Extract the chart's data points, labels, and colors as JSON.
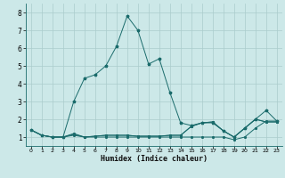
{
  "xlabel": "Humidex (Indice chaleur)",
  "bg_color": "#cce8e8",
  "grid_color": "#aacccc",
  "line_color": "#1a6b6b",
  "xlim": [
    -0.5,
    23.5
  ],
  "ylim": [
    0.5,
    8.5
  ],
  "xticks": [
    0,
    1,
    2,
    3,
    4,
    5,
    6,
    7,
    8,
    9,
    10,
    11,
    12,
    13,
    14,
    15,
    16,
    17,
    18,
    19,
    20,
    21,
    22,
    23
  ],
  "yticks": [
    1,
    2,
    3,
    4,
    5,
    6,
    7,
    8
  ],
  "lines": [
    {
      "x": [
        0,
        1,
        2,
        3,
        4,
        5,
        6,
        7,
        8,
        9,
        10,
        11,
        12,
        13,
        14,
        15,
        16,
        17,
        18,
        19,
        20,
        21,
        22,
        23
      ],
      "y": [
        1.4,
        1.1,
        1.0,
        1.0,
        1.2,
        1.0,
        1.0,
        1.0,
        1.0,
        1.0,
        1.0,
        1.0,
        1.0,
        1.0,
        1.0,
        1.0,
        1.0,
        1.0,
        1.0,
        0.85,
        1.0,
        1.5,
        1.9,
        1.9
      ]
    },
    {
      "x": [
        0,
        1,
        2,
        3,
        4,
        5,
        6,
        7,
        8,
        9,
        10,
        11,
        12,
        13,
        14,
        15,
        16,
        17,
        18,
        19,
        20,
        21,
        22,
        23
      ],
      "y": [
        1.4,
        1.1,
        1.0,
        1.0,
        1.1,
        1.0,
        1.05,
        1.1,
        1.1,
        1.1,
        1.05,
        1.05,
        1.05,
        1.1,
        1.1,
        1.6,
        1.8,
        1.85,
        1.35,
        1.0,
        1.5,
        2.0,
        1.85,
        1.85
      ]
    },
    {
      "x": [
        0,
        1,
        2,
        3,
        4,
        5,
        6,
        7,
        8,
        9,
        10,
        11,
        12,
        13,
        14,
        15,
        16,
        17,
        18,
        19,
        20,
        21,
        22,
        23
      ],
      "y": [
        1.4,
        1.1,
        1.0,
        1.0,
        3.0,
        4.3,
        4.5,
        5.0,
        6.1,
        7.8,
        7.0,
        5.1,
        5.4,
        3.5,
        1.8,
        1.65,
        1.8,
        1.8,
        1.35,
        1.0,
        1.5,
        2.0,
        2.5,
        1.9
      ]
    },
    {
      "x": [
        0,
        1,
        2,
        3,
        4,
        5,
        6,
        7,
        8,
        9,
        10,
        11,
        12,
        13,
        14,
        15,
        16,
        17,
        18,
        19,
        20,
        21,
        22,
        23
      ],
      "y": [
        1.4,
        1.1,
        1.0,
        1.0,
        1.15,
        1.0,
        1.05,
        1.1,
        1.1,
        1.1,
        1.05,
        1.05,
        1.05,
        1.1,
        1.1,
        1.6,
        1.8,
        1.85,
        1.35,
        1.0,
        1.5,
        2.0,
        1.85,
        1.85
      ]
    }
  ]
}
